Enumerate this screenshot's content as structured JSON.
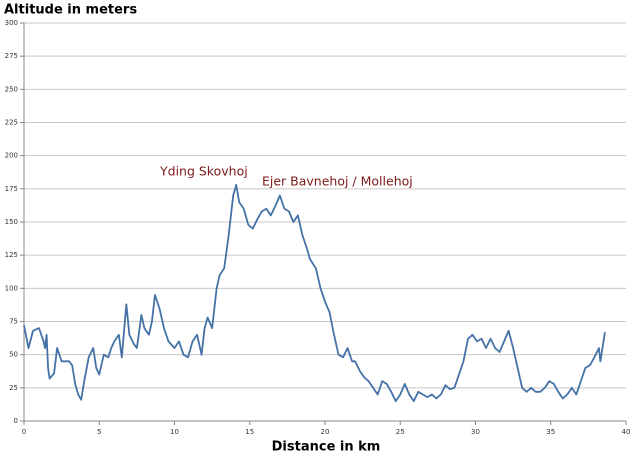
{
  "chart_data": {
    "type": "line",
    "title": "Altitude in meters",
    "xlabel": "Distance in km",
    "annotations": [
      "Yding Skovhoj",
      "Ejer Bavnehoj / Mollehoj"
    ],
    "annotation_color": "#7b1a1a",
    "color": "#4572a7",
    "grid": true,
    "xlim": [
      0,
      40
    ],
    "xticks": [
      0,
      5,
      10,
      15,
      20,
      25,
      30,
      35,
      40
    ],
    "ylim": [
      0,
      300
    ],
    "yticks": [
      0,
      25,
      50,
      75,
      100,
      125,
      150,
      175,
      200,
      225,
      250,
      275,
      300
    ],
    "x": [
      0,
      0.3,
      0.6,
      1,
      1.3,
      1.4,
      1.5,
      1.6,
      1.7,
      2,
      2.2,
      2.5,
      3,
      3.2,
      3.4,
      3.6,
      3.8,
      4,
      4.3,
      4.6,
      4.8,
      5,
      5.3,
      5.6,
      5.8,
      6,
      6.3,
      6.5,
      6.8,
      7,
      7.3,
      7.5,
      7.8,
      8,
      8.3,
      8.5,
      8.7,
      9,
      9.3,
      9.6,
      10,
      10.3,
      10.6,
      10.9,
      11.2,
      11.5,
      11.8,
      12,
      12.2,
      12.5,
      12.8,
      13,
      13.3,
      13.6,
      13.9,
      14.1,
      14.3,
      14.6,
      14.9,
      15.2,
      15.5,
      15.8,
      16.1,
      16.4,
      16.7,
      17,
      17.3,
      17.6,
      17.9,
      18.2,
      18.5,
      18.8,
      19,
      19.4,
      19.7,
      20,
      20.3,
      20.6,
      20.9,
      21.2,
      21.5,
      21.8,
      22,
      22.3,
      22.6,
      22.9,
      23.2,
      23.5,
      23.8,
      24.1,
      24.4,
      24.7,
      25,
      25.3,
      25.6,
      25.9,
      26.2,
      26.5,
      26.8,
      27.1,
      27.4,
      27.7,
      28,
      28.3,
      28.6,
      28.9,
      29.2,
      29.5,
      29.8,
      30.1,
      30.4,
      30.7,
      31,
      31.3,
      31.6,
      31.9,
      32.2,
      32.5,
      32.8,
      33.1,
      33.4,
      33.7,
      34,
      34.3,
      34.6,
      34.9,
      35.2,
      35.5,
      35.8,
      36.1,
      36.4,
      36.7,
      37,
      37.3,
      37.6,
      37.9,
      38.2,
      38.3,
      38.6
    ],
    "values": [
      72,
      55,
      68,
      70,
      60,
      55,
      65,
      40,
      32,
      36,
      55,
      45,
      45,
      42,
      28,
      20,
      16,
      30,
      48,
      55,
      40,
      35,
      50,
      48,
      55,
      60,
      65,
      48,
      88,
      65,
      58,
      55,
      80,
      70,
      65,
      75,
      95,
      85,
      70,
      60,
      55,
      60,
      50,
      48,
      60,
      65,
      50,
      70,
      78,
      70,
      100,
      110,
      115,
      140,
      170,
      178,
      165,
      160,
      148,
      145,
      152,
      158,
      160,
      155,
      162,
      170,
      160,
      158,
      150,
      155,
      140,
      130,
      122,
      115,
      100,
      90,
      82,
      65,
      50,
      48,
      55,
      45,
      45,
      38,
      33,
      30,
      25,
      20,
      30,
      28,
      22,
      15,
      20,
      28,
      20,
      15,
      22,
      20,
      18,
      20,
      17,
      20,
      27,
      24,
      25,
      35,
      45,
      62,
      65,
      60,
      62,
      55,
      62,
      55,
      52,
      60,
      68,
      55,
      40,
      25,
      22,
      25,
      22,
      22,
      25,
      30,
      28,
      22,
      17,
      20,
      25,
      20,
      30,
      40,
      42,
      48,
      55,
      45,
      67
    ]
  }
}
